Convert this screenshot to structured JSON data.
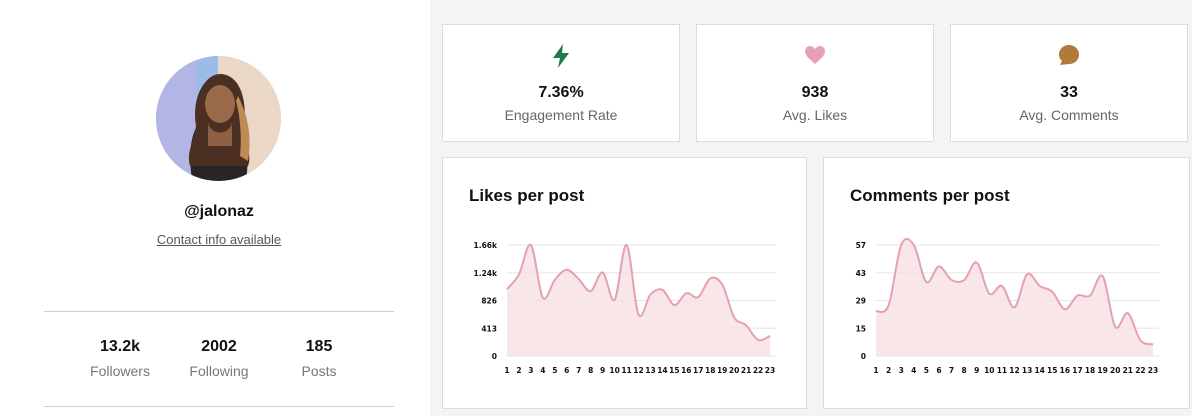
{
  "profile": {
    "username": "@jalonaz",
    "contact": "Contact info available",
    "stats": [
      {
        "value": "13.2k",
        "label": "Followers"
      },
      {
        "value": "2002",
        "label": "Following"
      },
      {
        "value": "185",
        "label": "Posts"
      }
    ]
  },
  "metrics": [
    {
      "value": "7.36%",
      "label": "Engagement Rate",
      "icon": "lightning-icon",
      "color": "#1f7a4d"
    },
    {
      "value": "938",
      "label": "Avg. Likes",
      "icon": "heart-icon",
      "color": "#e8a0b8"
    },
    {
      "value": "33",
      "label": "Avg. Comments",
      "icon": "comment-bubble-icon",
      "color": "#b07a3c"
    }
  ],
  "charts": {
    "line_color": "#e5a1b3",
    "fill_color": "#f6dde2",
    "grid_color": "#e6e6e6"
  },
  "chart_data": [
    {
      "type": "area",
      "title": "Likes per post",
      "x": [
        1,
        2,
        3,
        4,
        5,
        6,
        7,
        8,
        9,
        10,
        11,
        12,
        13,
        14,
        15,
        16,
        17,
        18,
        19,
        20,
        21,
        22,
        23
      ],
      "y_ticks": [
        "0",
        "413",
        "826",
        "1.24k",
        "1.66k"
      ],
      "ylim": [
        0,
        1660
      ],
      "series": [
        {
          "values": [
            1000,
            1220,
            1660,
            870,
            1140,
            1290,
            1150,
            970,
            1250,
            840,
            1660,
            620,
            920,
            990,
            760,
            940,
            880,
            1160,
            1070,
            580,
            460,
            240,
            300
          ]
        }
      ],
      "grid": true
    },
    {
      "type": "area",
      "title": "Comments per post",
      "x": [
        1,
        2,
        3,
        4,
        5,
        6,
        7,
        8,
        9,
        10,
        11,
        12,
        13,
        14,
        15,
        16,
        17,
        18,
        19,
        20,
        21,
        22,
        23
      ],
      "y_ticks": [
        "0",
        "15",
        "29",
        "43",
        "57"
      ],
      "ylim": [
        0,
        57
      ],
      "series": [
        {
          "values": [
            23,
            26,
            57,
            57,
            38,
            46,
            39,
            39,
            48,
            32,
            36,
            25,
            42,
            36,
            33,
            24,
            31,
            31,
            41,
            15,
            22,
            8,
            6
          ]
        }
      ],
      "grid": true
    }
  ]
}
